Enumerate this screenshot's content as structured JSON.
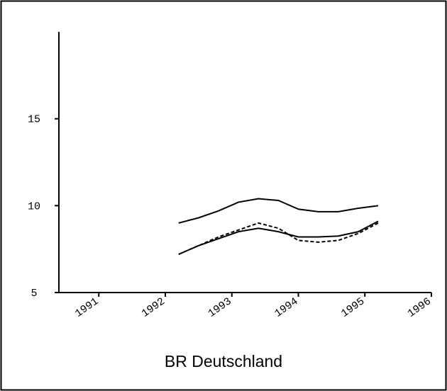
{
  "chart_data": {
    "type": "line",
    "title": "BR Deutschland",
    "x": [
      1992.2,
      1992.5,
      1992.8,
      1993.1,
      1993.4,
      1993.7,
      1994.0,
      1994.3,
      1994.6,
      1994.9,
      1995.2
    ],
    "series": [
      {
        "color": "#000000",
        "dashed": false,
        "values": [
          9.0,
          9.3,
          9.7,
          10.2,
          10.4,
          10.3,
          9.8,
          9.65,
          9.65,
          9.85,
          10.0
        ]
      },
      {
        "color": "#000000",
        "dashed": false,
        "values": [
          7.2,
          7.7,
          8.1,
          8.5,
          8.7,
          8.5,
          8.2,
          8.2,
          8.25,
          8.5,
          9.1
        ]
      },
      {
        "color": "#000000",
        "dashed": true,
        "values": [
          7.2,
          7.7,
          8.2,
          8.6,
          9.0,
          8.7,
          8.0,
          7.9,
          8.0,
          8.4,
          9.0
        ]
      }
    ],
    "xlim": [
      1990.4,
      1996
    ],
    "xticks": [
      1991,
      1992,
      1993,
      1994,
      1995,
      1996
    ],
    "ylim": [
      5,
      20
    ],
    "yticks": [
      5,
      10,
      15
    ],
    "grid": false
  }
}
